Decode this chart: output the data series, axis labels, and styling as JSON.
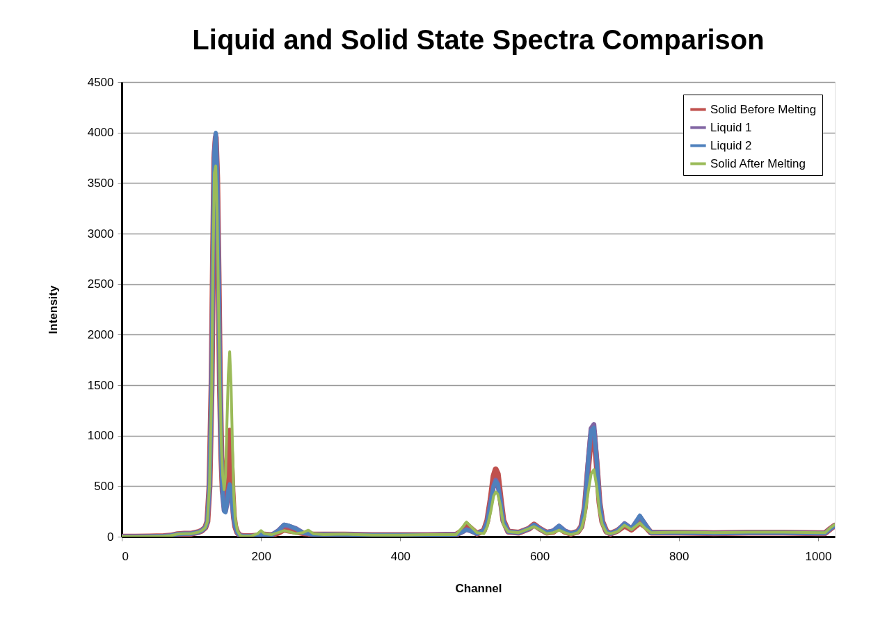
{
  "chart_data": {
    "type": "line",
    "title": "Liquid and Solid State Spectra Comparison",
    "xlabel": "Channel",
    "ylabel": "Intensity",
    "x": [
      0,
      20,
      40,
      60,
      70,
      80,
      90,
      100,
      110,
      115,
      120,
      123,
      126,
      129,
      131,
      133,
      135,
      137,
      139,
      141,
      143,
      145,
      147,
      149,
      151,
      153,
      155,
      157,
      159,
      161,
      163,
      166,
      170,
      175,
      185,
      195,
      200,
      205,
      215,
      225,
      233,
      240,
      250,
      260,
      268,
      275,
      290,
      320,
      360,
      400,
      440,
      480,
      490,
      495,
      500,
      510,
      520,
      525,
      530,
      534,
      537,
      540,
      544,
      548,
      555,
      570,
      585,
      592,
      600,
      610,
      620,
      628,
      636,
      645,
      655,
      660,
      665,
      670,
      674,
      678,
      682,
      686,
      690,
      696,
      702,
      712,
      722,
      732,
      744,
      752,
      760,
      800,
      850,
      900,
      950,
      1000,
      1010,
      1018,
      1024
    ],
    "series": [
      {
        "name": "Solid Before Melting",
        "color": "#c0504d",
        "values": [
          0,
          0,
          2,
          5,
          10,
          25,
          30,
          30,
          45,
          60,
          90,
          150,
          500,
          1500,
          2700,
          3750,
          3950,
          3550,
          2600,
          1500,
          800,
          450,
          380,
          450,
          650,
          900,
          1050,
          800,
          450,
          200,
          100,
          40,
          10,
          5,
          5,
          10,
          20,
          20,
          15,
          40,
          70,
          60,
          50,
          35,
          30,
          20,
          20,
          20,
          15,
          15,
          15,
          20,
          60,
          120,
          90,
          30,
          60,
          160,
          380,
          600,
          665,
          620,
          380,
          160,
          50,
          40,
          80,
          120,
          80,
          40,
          50,
          90,
          50,
          30,
          50,
          100,
          290,
          700,
          1000,
          1040,
          720,
          340,
          150,
          50,
          30,
          60,
          110,
          70,
          140,
          100,
          40,
          40,
          35,
          40,
          40,
          35,
          35,
          80,
          110
        ]
      },
      {
        "name": "Liquid 1",
        "color": "#8064a2",
        "values": [
          0,
          0,
          2,
          5,
          10,
          25,
          30,
          30,
          45,
          60,
          90,
          150,
          500,
          1500,
          2800,
          3800,
          3980,
          3600,
          2600,
          1500,
          800,
          400,
          260,
          250,
          320,
          440,
          500,
          440,
          300,
          180,
          100,
          40,
          10,
          5,
          5,
          10,
          20,
          20,
          15,
          60,
          115,
          105,
          80,
          40,
          30,
          20,
          20,
          20,
          15,
          15,
          15,
          20,
          50,
          70,
          60,
          30,
          60,
          150,
          350,
          500,
          560,
          520,
          350,
          150,
          50,
          40,
          80,
          115,
          80,
          40,
          60,
          105,
          60,
          30,
          50,
          100,
          300,
          760,
          1070,
          1110,
          760,
          350,
          150,
          50,
          30,
          60,
          130,
          80,
          200,
          120,
          40,
          40,
          35,
          40,
          40,
          35,
          35,
          80,
          110
        ]
      },
      {
        "name": "Liquid 2",
        "color": "#4f81bd",
        "values": [
          0,
          0,
          2,
          5,
          10,
          25,
          30,
          30,
          45,
          60,
          90,
          150,
          500,
          1500,
          2800,
          3800,
          4000,
          3600,
          2600,
          1500,
          800,
          400,
          250,
          240,
          320,
          450,
          520,
          450,
          300,
          180,
          100,
          40,
          10,
          5,
          5,
          10,
          20,
          20,
          15,
          60,
          120,
          110,
          80,
          40,
          30,
          20,
          20,
          20,
          15,
          15,
          15,
          20,
          50,
          70,
          60,
          30,
          60,
          150,
          350,
          500,
          550,
          520,
          350,
          150,
          50,
          40,
          80,
          120,
          80,
          40,
          60,
          110,
          60,
          30,
          50,
          100,
          300,
          750,
          1050,
          1080,
          750,
          350,
          150,
          50,
          30,
          60,
          130,
          80,
          210,
          120,
          40,
          40,
          35,
          40,
          40,
          35,
          35,
          80,
          110
        ]
      },
      {
        "name": "Solid After Melting",
        "color": "#9bbb59",
        "values": [
          0,
          0,
          2,
          5,
          10,
          25,
          30,
          30,
          45,
          60,
          90,
          150,
          500,
          1400,
          2700,
          3600,
          3670,
          3200,
          2300,
          1500,
          900,
          600,
          466,
          600,
          1100,
          1600,
          1830,
          1500,
          900,
          400,
          180,
          60,
          10,
          5,
          5,
          30,
          60,
          30,
          20,
          40,
          60,
          50,
          30,
          40,
          64,
          30,
          20,
          25,
          15,
          15,
          20,
          20,
          100,
          145,
          110,
          40,
          30,
          100,
          250,
          400,
          443,
          420,
          300,
          120,
          50,
          40,
          80,
          100,
          70,
          30,
          40,
          64,
          40,
          20,
          40,
          80,
          200,
          450,
          620,
          664,
          500,
          250,
          120,
          40,
          30,
          50,
          113,
          70,
          136,
          80,
          40,
          45,
          40,
          45,
          45,
          40,
          40,
          90,
          120
        ]
      }
    ],
    "xlim": [
      0,
      1024
    ],
    "xticks": [
      0,
      200,
      400,
      600,
      800,
      1000
    ],
    "ylim": [
      0,
      4500
    ],
    "yticks": [
      0,
      500,
      1000,
      1500,
      2000,
      2500,
      3000,
      3500,
      4000,
      4500
    ],
    "grid": "y",
    "legend": "top right",
    "line_style": "solid",
    "marker": "none"
  }
}
